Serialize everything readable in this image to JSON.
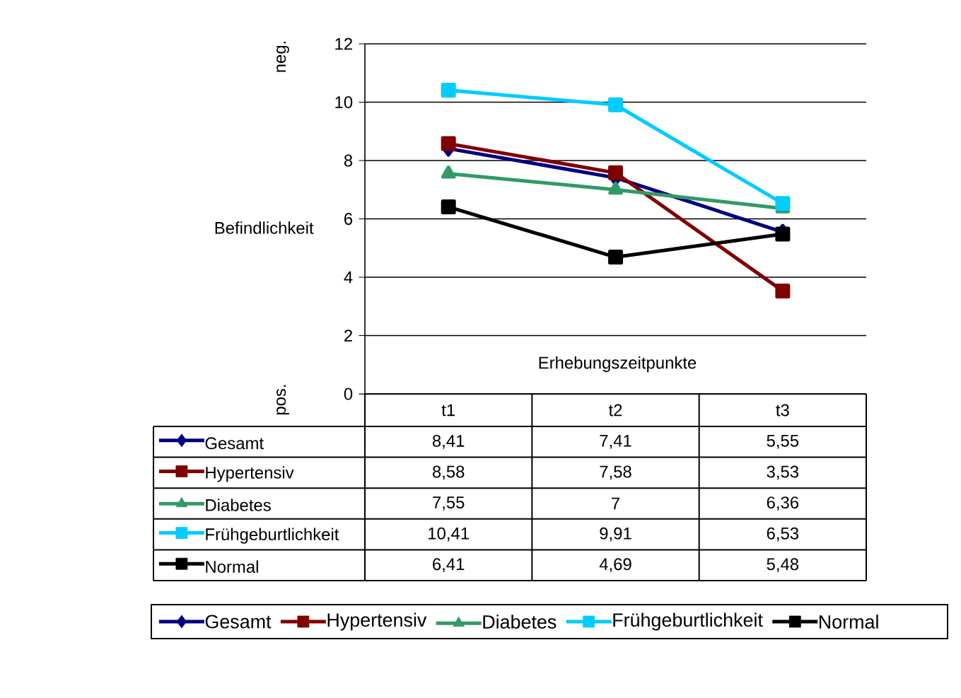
{
  "chart_data": {
    "type": "line",
    "ylabel": "Befindlichkeit",
    "xlabel": "Erhebungszeitpunkte",
    "annotations": [
      "neg.",
      "pos."
    ],
    "categories": [
      "t1",
      "t2",
      "t3"
    ],
    "series": [
      {
        "name": "Gesamt",
        "color": "#000080",
        "marker": "diamond",
        "values": [
          8.41,
          7.41,
          5.55
        ],
        "value_labels": [
          "8,41",
          "7,41",
          "5,55"
        ]
      },
      {
        "name": "Hypertensiv",
        "color": "#800000",
        "marker": "square",
        "values": [
          8.58,
          7.58,
          3.53
        ],
        "value_labels": [
          "8,58",
          "7,58",
          "3,53"
        ]
      },
      {
        "name": "Diabetes",
        "color": "#339966",
        "marker": "triangle",
        "values": [
          7.55,
          7,
          6.36
        ],
        "value_labels": [
          "7,55",
          "7",
          "6,36"
        ]
      },
      {
        "name": "Frühgeburtlichkeit",
        "color": "#00ccff",
        "marker": "square",
        "values": [
          10.41,
          9.91,
          6.53
        ],
        "value_labels": [
          "10,41",
          "9,91",
          "6,53"
        ]
      },
      {
        "name": "Normal",
        "color": "#000000",
        "marker": "square",
        "values": [
          6.41,
          4.69,
          5.48
        ],
        "value_labels": [
          "6,41",
          "4,69",
          "5,48"
        ]
      }
    ],
    "ylim": [
      0,
      12
    ],
    "yticks": [
      0,
      2,
      4,
      6,
      8,
      10,
      12
    ],
    "grid": "y",
    "legend": "bottom"
  }
}
